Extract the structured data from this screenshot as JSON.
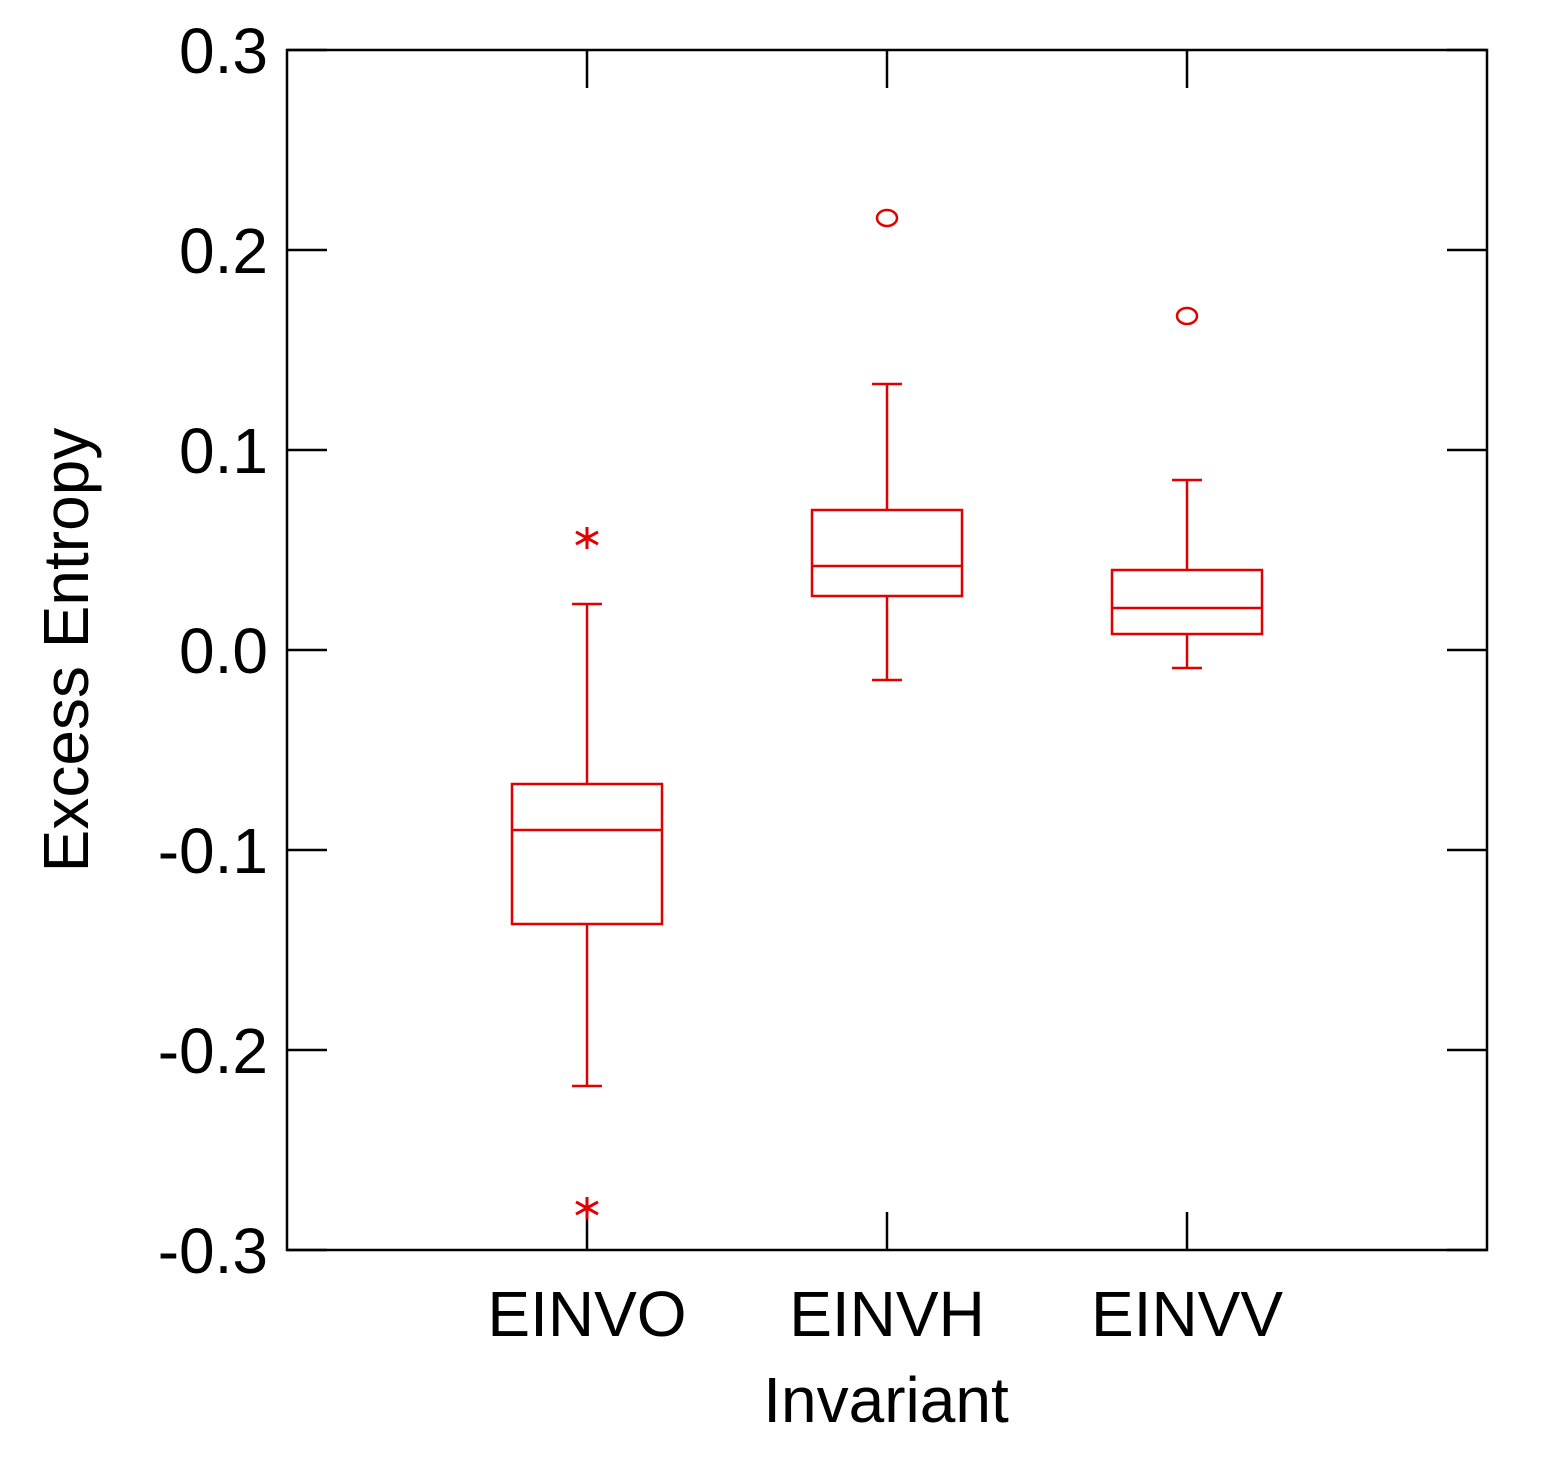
{
  "chart_data": {
    "type": "box",
    "xlabel": "Invariant",
    "ylabel": "Excess Entropy",
    "ylim": [
      -0.3,
      0.3
    ],
    "yticks": [
      "0.3",
      "0.2",
      "0.1",
      "0.0",
      "-0.1",
      "-0.2",
      "-0.3"
    ],
    "yticks_values": [
      0.3,
      0.2,
      0.1,
      0.0,
      -0.1,
      -0.2,
      -0.3
    ],
    "categories": [
      "EINVO",
      "EINVH",
      "EINVV"
    ],
    "series": [
      {
        "category": "EINVO",
        "whisker_low": -0.218,
        "q1": -0.137,
        "median": -0.09,
        "q3": -0.067,
        "whisker_high": 0.023,
        "outliers": [
          {
            "value": 0.056,
            "marker": "*"
          },
          {
            "value": -0.279,
            "marker": "*"
          }
        ]
      },
      {
        "category": "EINVH",
        "whisker_low": -0.015,
        "q1": 0.027,
        "median": 0.042,
        "q3": 0.07,
        "whisker_high": 0.133,
        "outliers": [
          {
            "value": 0.216,
            "marker": "o"
          }
        ]
      },
      {
        "category": "EINVV",
        "whisker_low": -0.009,
        "q1": 0.008,
        "median": 0.021,
        "q3": 0.04,
        "whisker_high": 0.085,
        "outliers": [
          {
            "value": 0.167,
            "marker": "o"
          }
        ]
      }
    ],
    "colors": {
      "box": "#e00000",
      "axis": "#000000"
    },
    "grid": false,
    "legend": "none"
  }
}
